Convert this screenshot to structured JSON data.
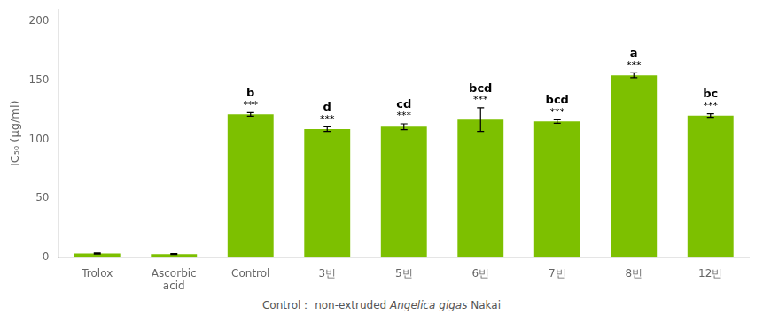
{
  "chart_data": {
    "type": "bar",
    "categories": [
      "Trolox",
      "Ascorbic\nacid",
      "Control",
      "3번",
      "5번",
      "6번",
      "7번",
      "8번",
      "12번"
    ],
    "values": [
      3.5,
      3.0,
      121.0,
      108.5,
      110.5,
      116.5,
      115.0,
      154.0,
      120.0
    ],
    "errors": [
      0.5,
      0.4,
      1.5,
      2.0,
      2.5,
      10.0,
      1.5,
      2.0,
      1.5
    ],
    "sig_letters": [
      null,
      null,
      "b",
      "d",
      "cd",
      "bcd",
      "bcd",
      "a",
      "bc"
    ],
    "sig_stars": [
      null,
      null,
      "***",
      "***",
      "***",
      "***",
      "***",
      "***",
      "***"
    ],
    "color": "#7dc000",
    "ylabel": "IC₅₀ (μg/ml)",
    "ylim": [
      0,
      210
    ],
    "yticks": [
      0,
      50,
      100,
      150,
      200
    ],
    "grid": false,
    "caption": [
      "Control： non-extruded",
      "Angelica gigas",
      "Nakai"
    ]
  }
}
